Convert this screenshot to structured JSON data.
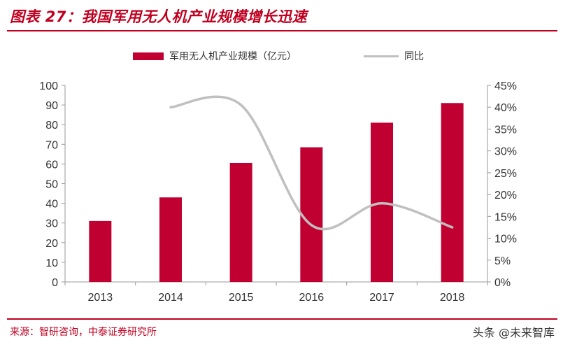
{
  "header": {
    "title": "图表 27：我国军用无人机产业规模增长迅速"
  },
  "footer": {
    "source": "来源：智研咨询，中泰证券研究所",
    "watermark": "头条 @未来智库"
  },
  "colors": {
    "accent": "#c00020",
    "bar": "#c00030",
    "line": "#c0c0c0"
  },
  "chart_data": {
    "type": "bar",
    "categories": [
      "2013",
      "2014",
      "2015",
      "2016",
      "2017",
      "2018"
    ],
    "series": [
      {
        "name": "军用无人机产业规模（亿元）",
        "type": "bar",
        "axis": "left",
        "values": [
          31,
          43,
          60.5,
          68.5,
          81,
          91
        ]
      },
      {
        "name": "同比",
        "type": "line",
        "axis": "right",
        "smooth": true,
        "values": [
          null,
          40,
          40.5,
          13,
          18,
          12.5
        ]
      }
    ],
    "y_left": {
      "min": 0,
      "max": 100,
      "ticks": [
        "0",
        "10",
        "20",
        "30",
        "40",
        "50",
        "60",
        "70",
        "80",
        "90",
        "100"
      ]
    },
    "y_right": {
      "min": 0,
      "max": 45,
      "ticks": [
        "0%",
        "5%",
        "10%",
        "15%",
        "20%",
        "25%",
        "30%",
        "35%",
        "40%",
        "45%"
      ]
    },
    "legend_position": "top"
  }
}
